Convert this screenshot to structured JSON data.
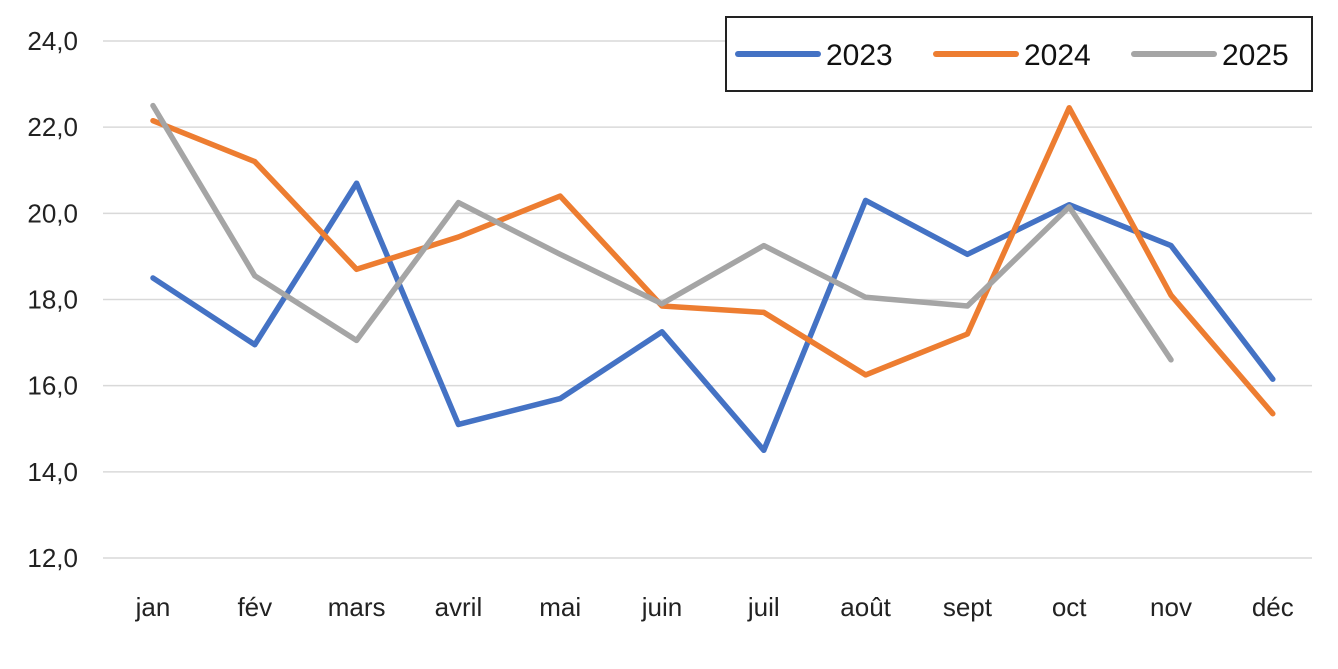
{
  "chart_data": {
    "type": "line",
    "title": "",
    "xlabel": "",
    "ylabel": "",
    "categories": [
      "jan",
      "fév",
      "mars",
      "avril",
      "mai",
      "juin",
      "juil",
      "août",
      "sept",
      "oct",
      "nov",
      "déc"
    ],
    "ylim": [
      12.0,
      24.0
    ],
    "yticks": [
      "12,0",
      "14,0",
      "16,0",
      "18,0",
      "20,0",
      "22,0",
      "24,0"
    ],
    "ytick_values": [
      12,
      14,
      16,
      18,
      20,
      22,
      24
    ],
    "grid": true,
    "legend_position": "top-right",
    "series": [
      {
        "name": "2023",
        "color": "#4472C4",
        "values": [
          18.5,
          16.95,
          20.7,
          15.1,
          15.7,
          17.25,
          14.5,
          20.3,
          19.05,
          20.2,
          19.25,
          16.15
        ]
      },
      {
        "name": "2024",
        "color": "#ED7D31",
        "values": [
          22.15,
          21.2,
          18.7,
          19.45,
          20.4,
          17.85,
          17.7,
          16.25,
          17.2,
          22.45,
          18.1,
          15.35
        ]
      },
      {
        "name": "2025",
        "color": "#A5A5A5",
        "values": [
          22.5,
          18.55,
          17.05,
          20.25,
          19.05,
          17.9,
          19.25,
          18.05,
          17.85,
          20.15,
          16.6,
          null
        ]
      }
    ]
  }
}
